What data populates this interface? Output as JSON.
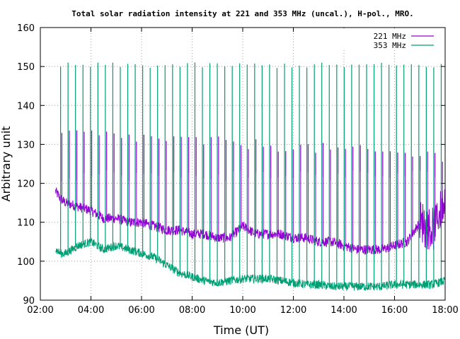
{
  "chart_data": {
    "type": "line",
    "title": "Total solar radiation intensity at 221 and 353 MHz (uncal.), H-pol., MRO.",
    "xlabel": "Time (UT)",
    "ylabel": "Arbitrary unit",
    "xlim": [
      2.0,
      18.0
    ],
    "ylim": [
      90,
      160
    ],
    "xticks": [
      {
        "v": 2,
        "label": "02:00"
      },
      {
        "v": 4,
        "label": "04:00"
      },
      {
        "v": 6,
        "label": "06:00"
      },
      {
        "v": 8,
        "label": "08:00"
      },
      {
        "v": 10,
        "label": "10:00"
      },
      {
        "v": 12,
        "label": "12:00"
      },
      {
        "v": 14,
        "label": "14:00"
      },
      {
        "v": 16,
        "label": "16:00"
      },
      {
        "v": 18,
        "label": "18:00"
      }
    ],
    "yticks": [
      {
        "v": 90,
        "label": "90"
      },
      {
        "v": 100,
        "label": "100"
      },
      {
        "v": 110,
        "label": "110"
      },
      {
        "v": 120,
        "label": "120"
      },
      {
        "v": 130,
        "label": "130"
      },
      {
        "v": 140,
        "label": "140"
      },
      {
        "v": 150,
        "label": "150"
      },
      {
        "v": 160,
        "label": "160"
      }
    ],
    "grid": true,
    "legend_position": "top-right",
    "series": [
      {
        "name": "221 MHz",
        "color": "#9400d3",
        "x": [
          2.6,
          2.8,
          3.0,
          3.5,
          4.0,
          4.5,
          5.0,
          5.5,
          6.0,
          6.5,
          7.0,
          7.5,
          8.0,
          8.5,
          9.0,
          9.5,
          10.0,
          10.5,
          11.0,
          11.5,
          12.0,
          12.5,
          13.0,
          13.5,
          14.0,
          14.5,
          15.0,
          15.5,
          16.0,
          16.5,
          17.0,
          17.5,
          18.0
        ],
        "values": [
          118,
          116,
          115,
          114,
          113,
          111,
          111,
          110,
          110,
          109,
          108,
          108,
          107,
          107,
          106,
          106,
          109,
          107,
          107,
          107,
          106,
          106,
          105,
          105,
          104,
          103,
          103,
          103,
          104,
          105,
          110,
          108,
          116
        ]
      },
      {
        "name": "353 MHz",
        "color": "#009e73",
        "x": [
          2.6,
          2.8,
          3.0,
          3.5,
          4.0,
          4.5,
          5.0,
          5.5,
          6.0,
          6.5,
          7.0,
          7.5,
          8.0,
          8.5,
          9.0,
          9.5,
          10.0,
          10.5,
          11.0,
          11.5,
          12.0,
          12.5,
          13.0,
          13.5,
          14.0,
          14.5,
          15.0,
          15.5,
          16.0,
          16.5,
          17.0,
          17.5,
          18.0
        ],
        "values": [
          103,
          102,
          102,
          104,
          105,
          103,
          104,
          103,
          102,
          101,
          99,
          97,
          96,
          95,
          94.5,
          95,
          95.5,
          95.5,
          95.5,
          95,
          94.5,
          94,
          94,
          93.5,
          93.5,
          93.5,
          93.5,
          93.5,
          94,
          94,
          94,
          94,
          95
        ]
      }
    ]
  }
}
